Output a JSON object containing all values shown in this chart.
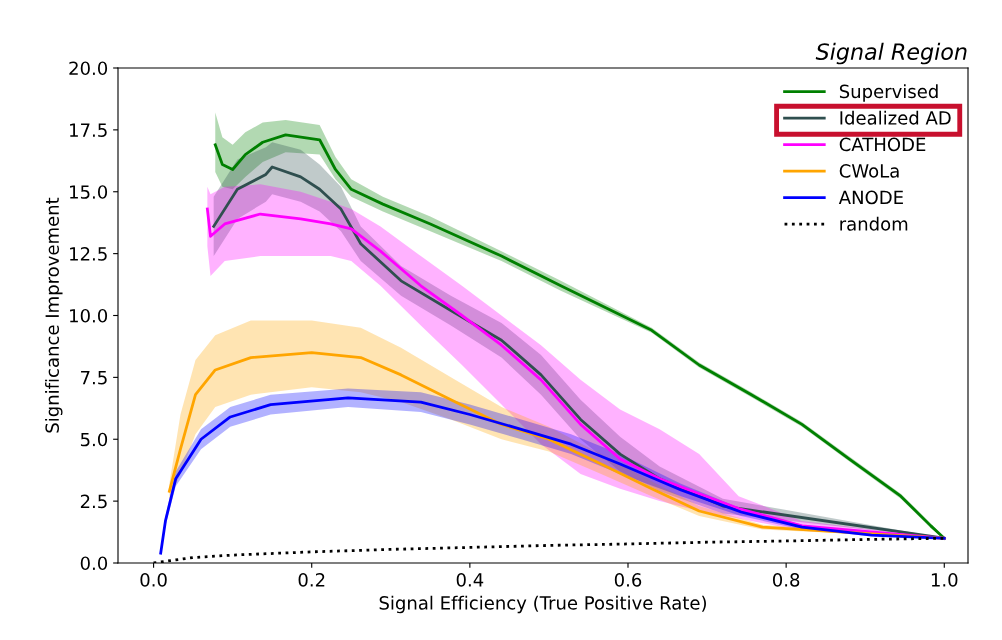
{
  "chart_data": {
    "type": "line",
    "title": "Signal Region",
    "xlabel": "Signal Efficiency (True Positive Rate)",
    "ylabel": "Significance Improvement",
    "xlim": [
      -0.045,
      1.03
    ],
    "ylim": [
      0,
      20
    ],
    "xticks": [
      {
        "value": 0,
        "label": "0.0"
      },
      {
        "value": 0.2,
        "label": "0.2"
      },
      {
        "value": 0.4,
        "label": "0.4"
      },
      {
        "value": 0.6,
        "label": "0.6"
      },
      {
        "value": 0.8,
        "label": "0.8"
      },
      {
        "value": 1,
        "label": "1.0"
      }
    ],
    "yticks": [
      {
        "value": 0,
        "label": "0.0"
      },
      {
        "value": 2.5,
        "label": "2.5"
      },
      {
        "value": 5,
        "label": "5.0"
      },
      {
        "value": 7.5,
        "label": "7.5"
      },
      {
        "value": 10,
        "label": "10.0"
      },
      {
        "value": 12.5,
        "label": "12.5"
      },
      {
        "value": 15,
        "label": "15.0"
      },
      {
        "value": 17.5,
        "label": "17.5"
      },
      {
        "value": 20,
        "label": "20.0"
      }
    ],
    "grid": false,
    "legend": "top right",
    "line_style": "solid",
    "series": [
      {
        "name": "Supervised",
        "color": "#008000",
        "x": [
          0.078,
          0.087,
          0.1,
          0.116,
          0.138,
          0.167,
          0.21,
          0.23,
          0.25,
          0.29,
          0.35,
          0.44,
          0.515,
          0.63,
          0.69,
          0.756,
          0.82,
          0.88,
          0.945,
          0.983,
          1.0
        ],
        "values": [
          16.9,
          16.1,
          15.9,
          16.5,
          17.0,
          17.3,
          17.1,
          15.9,
          15.1,
          14.5,
          13.7,
          12.4,
          11.2,
          9.4,
          8.0,
          6.8,
          5.6,
          4.2,
          2.7,
          1.5,
          1.0
        ],
        "lower": [
          15.8,
          15.2,
          15.1,
          15.6,
          16.2,
          16.6,
          16.5,
          15.5,
          14.8,
          14.2,
          13.4,
          12.2,
          11.0,
          9.3,
          7.9,
          6.7,
          5.5,
          4.1,
          2.6,
          1.4,
          1.0
        ],
        "upper": [
          18.2,
          17.2,
          16.9,
          17.4,
          17.8,
          17.9,
          17.7,
          16.4,
          15.5,
          14.8,
          14.0,
          12.6,
          11.4,
          9.5,
          8.1,
          6.9,
          5.7,
          4.3,
          2.8,
          1.6,
          1.0
        ]
      },
      {
        "name": "Idealized AD",
        "color": "#2f4f4f",
        "x": [
          0.076,
          0.106,
          0.142,
          0.15,
          0.186,
          0.21,
          0.237,
          0.262,
          0.313,
          0.376,
          0.44,
          0.49,
          0.54,
          0.59,
          0.64,
          0.72,
          1.0
        ],
        "values": [
          13.6,
          15.1,
          15.7,
          16.0,
          15.6,
          15.1,
          14.3,
          12.9,
          11.4,
          10.2,
          9.0,
          7.6,
          5.8,
          4.4,
          3.4,
          2.3,
          1.0
        ],
        "lower": [
          12.4,
          13.9,
          14.6,
          14.9,
          14.6,
          14.2,
          13.4,
          12.2,
          10.8,
          9.6,
          8.3,
          6.8,
          5.0,
          3.7,
          2.9,
          2.0,
          1.0
        ],
        "upper": [
          14.8,
          16.3,
          16.8,
          17.0,
          16.7,
          16.1,
          15.2,
          13.6,
          12.0,
          10.8,
          9.7,
          8.4,
          6.6,
          5.1,
          3.9,
          2.6,
          1.0
        ]
      },
      {
        "name": "CATHODE",
        "color": "#ff00ff",
        "x": [
          0.068,
          0.072,
          0.09,
          0.135,
          0.186,
          0.224,
          0.25,
          0.287,
          0.338,
          0.39,
          0.44,
          0.49,
          0.54,
          0.59,
          0.64,
          0.69,
          0.74,
          0.82,
          1.0
        ],
        "values": [
          14.3,
          13.2,
          13.7,
          14.1,
          13.9,
          13.7,
          13.5,
          12.6,
          11.2,
          10.0,
          8.8,
          7.4,
          5.6,
          4.2,
          3.4,
          2.8,
          2.2,
          1.5,
          1.0
        ],
        "lower": [
          12.8,
          11.6,
          12.2,
          12.4,
          12.4,
          12.4,
          12.2,
          11.2,
          9.6,
          8.0,
          6.4,
          4.8,
          3.6,
          3.0,
          2.5,
          2.1,
          1.8,
          1.3,
          1.0
        ],
        "upper": [
          15.2,
          14.9,
          15.2,
          15.3,
          15.0,
          14.6,
          14.3,
          13.6,
          12.4,
          11.2,
          10.0,
          8.8,
          7.4,
          6.2,
          5.4,
          4.4,
          2.7,
          1.7,
          1.0
        ]
      },
      {
        "name": "CWoLa",
        "color": "#ffa500",
        "x": [
          0.02,
          0.034,
          0.053,
          0.078,
          0.123,
          0.2,
          0.262,
          0.313,
          0.376,
          0.44,
          0.5,
          0.566,
          0.63,
          0.69,
          0.77,
          1.0
        ],
        "values": [
          2.9,
          4.6,
          6.8,
          7.8,
          8.3,
          8.5,
          8.3,
          7.6,
          6.6,
          5.6,
          5.0,
          4.0,
          3.0,
          2.1,
          1.45,
          1.0
        ],
        "lower": [
          2.6,
          3.6,
          5.2,
          6.3,
          6.8,
          7.1,
          6.9,
          6.5,
          5.8,
          5.0,
          4.5,
          3.6,
          2.7,
          1.9,
          1.35,
          1.0
        ],
        "upper": [
          3.2,
          6.0,
          8.2,
          9.2,
          9.8,
          9.8,
          9.5,
          8.7,
          7.5,
          6.3,
          5.5,
          4.4,
          3.3,
          2.3,
          1.55,
          1.0
        ]
      },
      {
        "name": "ANODE",
        "color": "#0000ff",
        "x": [
          0.009,
          0.015,
          0.028,
          0.06,
          0.097,
          0.148,
          0.246,
          0.338,
          0.4,
          0.465,
          0.528,
          0.59,
          0.667,
          0.743,
          0.82,
          0.908,
          1.0
        ],
        "values": [
          0.4,
          1.7,
          3.4,
          5.0,
          5.9,
          6.4,
          6.67,
          6.5,
          6.0,
          5.4,
          4.8,
          4.0,
          2.95,
          2.06,
          1.45,
          1.13,
          1.0
        ],
        "lower": [
          0.3,
          1.5,
          3.1,
          4.6,
          5.5,
          6.0,
          6.3,
          6.1,
          5.6,
          5.0,
          4.4,
          3.6,
          2.7,
          1.9,
          1.35,
          1.08,
          1.0
        ],
        "upper": [
          0.5,
          1.9,
          3.7,
          5.4,
          6.3,
          6.8,
          7.05,
          6.9,
          6.4,
          5.8,
          5.2,
          4.4,
          3.2,
          2.2,
          1.55,
          1.18,
          1.0
        ]
      },
      {
        "name": "random",
        "color": "#000000",
        "line_style": "dotted",
        "x": [
          0,
          0.05,
          0.1,
          0.2,
          0.3,
          0.4,
          0.5,
          0.6,
          0.7,
          0.8,
          0.9,
          1.0
        ],
        "values": [
          0,
          0.22,
          0.32,
          0.45,
          0.55,
          0.63,
          0.71,
          0.77,
          0.84,
          0.89,
          0.95,
          1.0
        ]
      }
    ]
  }
}
